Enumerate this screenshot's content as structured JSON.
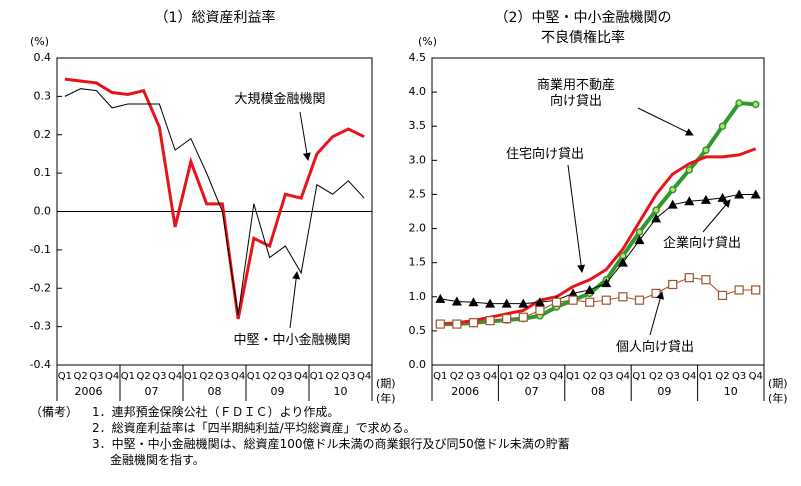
{
  "chart_data": [
    {
      "type": "line",
      "title": "（1）総資産利益率",
      "y_unit": "(%)",
      "categories": [
        "Q1",
        "Q2",
        "Q3",
        "Q4",
        "Q1",
        "Q2",
        "Q3",
        "Q4",
        "Q1",
        "Q2",
        "Q3",
        "Q4",
        "Q1",
        "Q2",
        "Q3",
        "Q4",
        "Q1",
        "Q2",
        "Q3",
        "Q4"
      ],
      "years": [
        "2006",
        "07",
        "08",
        "09",
        "10"
      ],
      "x_unit": "(期)",
      "year_unit": "(年)",
      "ylim": [
        -0.4,
        0.4
      ],
      "yticks": [
        -0.4,
        -0.3,
        -0.2,
        -0.1,
        {
          "value": 0,
          "label": "0.0"
        },
        0.1,
        0.2,
        0.3,
        0.4
      ],
      "zero_line": true,
      "series": [
        {
          "name": "大規模金融機関",
          "color": "#e8141b",
          "line_width": 3,
          "values": [
            0.345,
            0.34,
            0.335,
            0.31,
            0.305,
            0.315,
            0.22,
            -0.04,
            0.13,
            0.02,
            0.02,
            -0.28,
            -0.07,
            -0.09,
            0.045,
            0.035,
            0.15,
            0.195,
            0.215,
            0.195
          ]
        },
        {
          "name": "中堅・中小金融機関",
          "color": "#000000",
          "line_width": 1,
          "values": [
            0.3,
            0.32,
            0.315,
            0.27,
            0.28,
            0.28,
            0.28,
            0.16,
            0.19,
            0.1,
            0.0,
            -0.27,
            0.02,
            -0.12,
            -0.09,
            -0.16,
            0.07,
            0.045,
            0.08,
            0.035
          ]
        }
      ]
    },
    {
      "type": "line",
      "title_lines": [
        "（2）中堅・中小金融機関の",
        "不良債権比率"
      ],
      "y_unit": "(%)",
      "categories": [
        "Q1",
        "Q2",
        "Q3",
        "Q4",
        "Q1",
        "Q2",
        "Q3",
        "Q4",
        "Q1",
        "Q2",
        "Q3",
        "Q4",
        "Q1",
        "Q2",
        "Q3",
        "Q4",
        "Q1",
        "Q2",
        "Q3",
        "Q4"
      ],
      "years": [
        "2006",
        "07",
        "08",
        "09",
        "10"
      ],
      "x_unit": "(期)",
      "year_unit": "(年)",
      "ylim": [
        0,
        4.5
      ],
      "yticks": [
        {
          "value": 0,
          "label": "0.0"
        },
        0.5,
        {
          "value": 1,
          "label": "1.0"
        },
        1.5,
        {
          "value": 2,
          "label": "2.0"
        },
        2.5,
        {
          "value": 3,
          "label": "3.0"
        },
        3.5,
        {
          "value": 4,
          "label": "4.0"
        },
        4.5
      ],
      "zero_line": false,
      "series": [
        {
          "name": "商業用不動産向け貸出",
          "color": "#2e9a2e",
          "line_width": 4,
          "marker": "circle",
          "marker_fill": "#b6e06a",
          "values": [
            0.6,
            0.6,
            0.62,
            0.64,
            0.66,
            0.68,
            0.72,
            0.85,
            0.95,
            1.05,
            1.25,
            1.6,
            1.95,
            2.27,
            2.57,
            2.86,
            3.15,
            3.5,
            3.84,
            3.82
          ]
        },
        {
          "name": "住宅向け貸出",
          "color": "#e8141b",
          "line_width": 3,
          "values": [
            0.6,
            0.62,
            0.65,
            0.7,
            0.75,
            0.8,
            0.95,
            1.0,
            1.15,
            1.25,
            1.4,
            1.7,
            2.1,
            2.5,
            2.8,
            2.95,
            3.05,
            3.05,
            3.08,
            3.17
          ]
        },
        {
          "name": "企業向け貸出",
          "color": "#000000",
          "line_width": 1,
          "marker": "triangle",
          "marker_fill": "#000000",
          "values": [
            0.97,
            0.93,
            0.92,
            0.9,
            0.9,
            0.9,
            0.92,
            0.95,
            1.05,
            1.1,
            1.2,
            1.5,
            1.83,
            2.15,
            2.35,
            2.4,
            2.42,
            2.45,
            2.5,
            2.5
          ]
        },
        {
          "name": "個人向け貸出",
          "color": "#a0522d",
          "line_width": 1,
          "marker": "square",
          "marker_fill": "#ffffff",
          "values": [
            0.6,
            0.6,
            0.62,
            0.65,
            0.68,
            0.7,
            0.8,
            0.92,
            0.95,
            0.92,
            0.95,
            1.0,
            0.95,
            1.05,
            1.18,
            1.28,
            1.25,
            1.02,
            1.1,
            1.1
          ]
        }
      ]
    }
  ],
  "notes": {
    "label": "（備考）",
    "items": [
      "1．連邦預金保険公社（ＦＤＩＣ）より作成。",
      "2．総資産利益率は「四半期純利益/平均総資産」で求める。",
      "3．中堅・中小金融機関は、総資産100億ドル未満の商業銀行及び同50億ドル未満の貯蓄",
      "金融機関を指す。"
    ]
  }
}
